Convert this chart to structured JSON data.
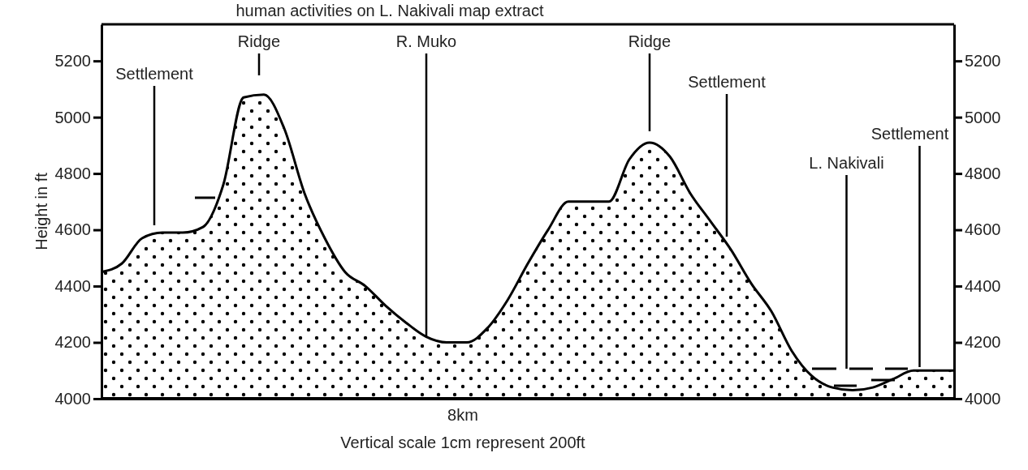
{
  "chart_data": {
    "type": "area",
    "title": "human activities on L. Nakivali map extract",
    "xlabel": "8km",
    "ylabel": "Height in ft",
    "categories": [
      null,
      null,
      null,
      null,
      null,
      null,
      null,
      null,
      null,
      null,
      null,
      null,
      null,
      null,
      null,
      null,
      null,
      null,
      null,
      null,
      null,
      null,
      null,
      null,
      null,
      null,
      null,
      null,
      null,
      null,
      null,
      null,
      null,
      null,
      null,
      null,
      null,
      null,
      null,
      null,
      null,
      null,
      null
    ],
    "series": [
      {
        "color": "#000000",
        "values": [
          4450,
          4480,
          4570,
          4590,
          4590,
          4610,
          4760,
          5070,
          5080,
          4960,
          4730,
          4570,
          4450,
          4400,
          4330,
          4270,
          4220,
          4200,
          4200,
          4250,
          4350,
          4480,
          4600,
          4700,
          4700,
          4700,
          4850,
          4910,
          4860,
          4730,
          4630,
          4530,
          4410,
          4310,
          4170,
          4080,
          4040,
          4030,
          4040,
          4070,
          4100,
          4100,
          4100
        ]
      }
    ],
    "ylim": [
      4000,
      5330
    ],
    "yticks": [
      4000,
      4200,
      4400,
      4600,
      4800,
      5000,
      5200
    ],
    "y2lim": [
      4000,
      5330
    ],
    "y2ticks": [
      4000,
      4200,
      4400,
      4600,
      4800,
      5000,
      5200
    ],
    "tick_labels": "y",
    "annotations": [
      "Settlement",
      "Ridge",
      "R. Muko",
      "Ridge",
      "Settlement",
      "L. Nakivali",
      "Settlement",
      "Vertical scale 1cm represent 200ft"
    ]
  }
}
